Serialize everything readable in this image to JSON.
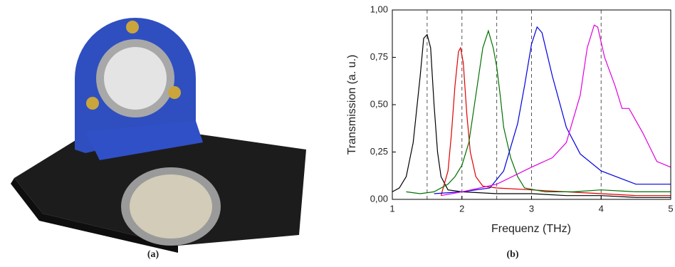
{
  "chart_data": {
    "type": "line",
    "caption_a": "(a)",
    "caption_b": "(b)",
    "xlabel": "Frequenz (THz)",
    "ylabel": "Transmission (a. u.)",
    "xlim": [
      1,
      5
    ],
    "xticks": [
      1,
      2,
      3,
      4,
      5
    ],
    "ylim": [
      0,
      1
    ],
    "yticks": [
      {
        "value": 0,
        "label": "0,00"
      },
      {
        "value": 0.25,
        "label": "0,25"
      },
      {
        "value": 0.5,
        "label": "0,50"
      },
      {
        "value": 0.75,
        "label": "0,75"
      },
      {
        "value": 1,
        "label": "1,00"
      }
    ],
    "reference_lines": [
      1.5,
      2,
      2.5,
      3,
      4
    ],
    "series": [
      {
        "color": "#000000",
        "x": [
          1.0,
          1.1,
          1.2,
          1.3,
          1.4,
          1.45,
          1.5,
          1.55,
          1.6,
          1.65,
          1.7,
          1.8,
          2.0,
          2.5,
          3,
          3.5,
          4,
          4.5,
          5
        ],
        "values": [
          0.04,
          0.06,
          0.12,
          0.3,
          0.65,
          0.85,
          0.87,
          0.8,
          0.5,
          0.25,
          0.12,
          0.05,
          0.04,
          0.03,
          0.03,
          0.02,
          0.02,
          0.01,
          0.01
        ]
      },
      {
        "color": "#e00000",
        "x": [
          1.7,
          1.8,
          1.85,
          1.9,
          1.95,
          1.98,
          2.02,
          2.07,
          2.12,
          2.2,
          2.3,
          2.5,
          3,
          3.5,
          4,
          4.5,
          5
        ],
        "values": [
          0.02,
          0.15,
          0.35,
          0.6,
          0.78,
          0.8,
          0.72,
          0.45,
          0.25,
          0.12,
          0.07,
          0.06,
          0.05,
          0.04,
          0.03,
          0.02,
          0.02
        ]
      },
      {
        "color": "#007000",
        "x": [
          1.2,
          1.4,
          1.6,
          1.8,
          1.9,
          2.0,
          2.1,
          2.2,
          2.3,
          2.38,
          2.45,
          2.5,
          2.55,
          2.6,
          2.7,
          2.8,
          2.9,
          3.2,
          3.6,
          4.0,
          4.5,
          5
        ],
        "values": [
          0.04,
          0.03,
          0.04,
          0.08,
          0.12,
          0.18,
          0.3,
          0.55,
          0.8,
          0.89,
          0.8,
          0.7,
          0.55,
          0.38,
          0.22,
          0.12,
          0.06,
          0.04,
          0.04,
          0.05,
          0.04,
          0.04
        ]
      },
      {
        "color": "#0000e0",
        "x": [
          1.6,
          2.0,
          2.4,
          2.6,
          2.8,
          2.9,
          3.0,
          3.08,
          3.15,
          3.3,
          3.5,
          3.7,
          4.0,
          4.5,
          5
        ],
        "values": [
          0.03,
          0.04,
          0.06,
          0.15,
          0.4,
          0.6,
          0.82,
          0.91,
          0.88,
          0.65,
          0.38,
          0.24,
          0.15,
          0.08,
          0.08
        ]
      },
      {
        "color": "#e000e0",
        "x": [
          1.7,
          2.0,
          2.5,
          3.0,
          3.3,
          3.5,
          3.7,
          3.8,
          3.9,
          3.95,
          4.05,
          4.2,
          4.3,
          4.4,
          4.6,
          4.8,
          5.0
        ],
        "values": [
          0.02,
          0.04,
          0.08,
          0.17,
          0.22,
          0.3,
          0.55,
          0.8,
          0.92,
          0.91,
          0.75,
          0.6,
          0.48,
          0.48,
          0.35,
          0.2,
          0.17
        ]
      }
    ]
  }
}
